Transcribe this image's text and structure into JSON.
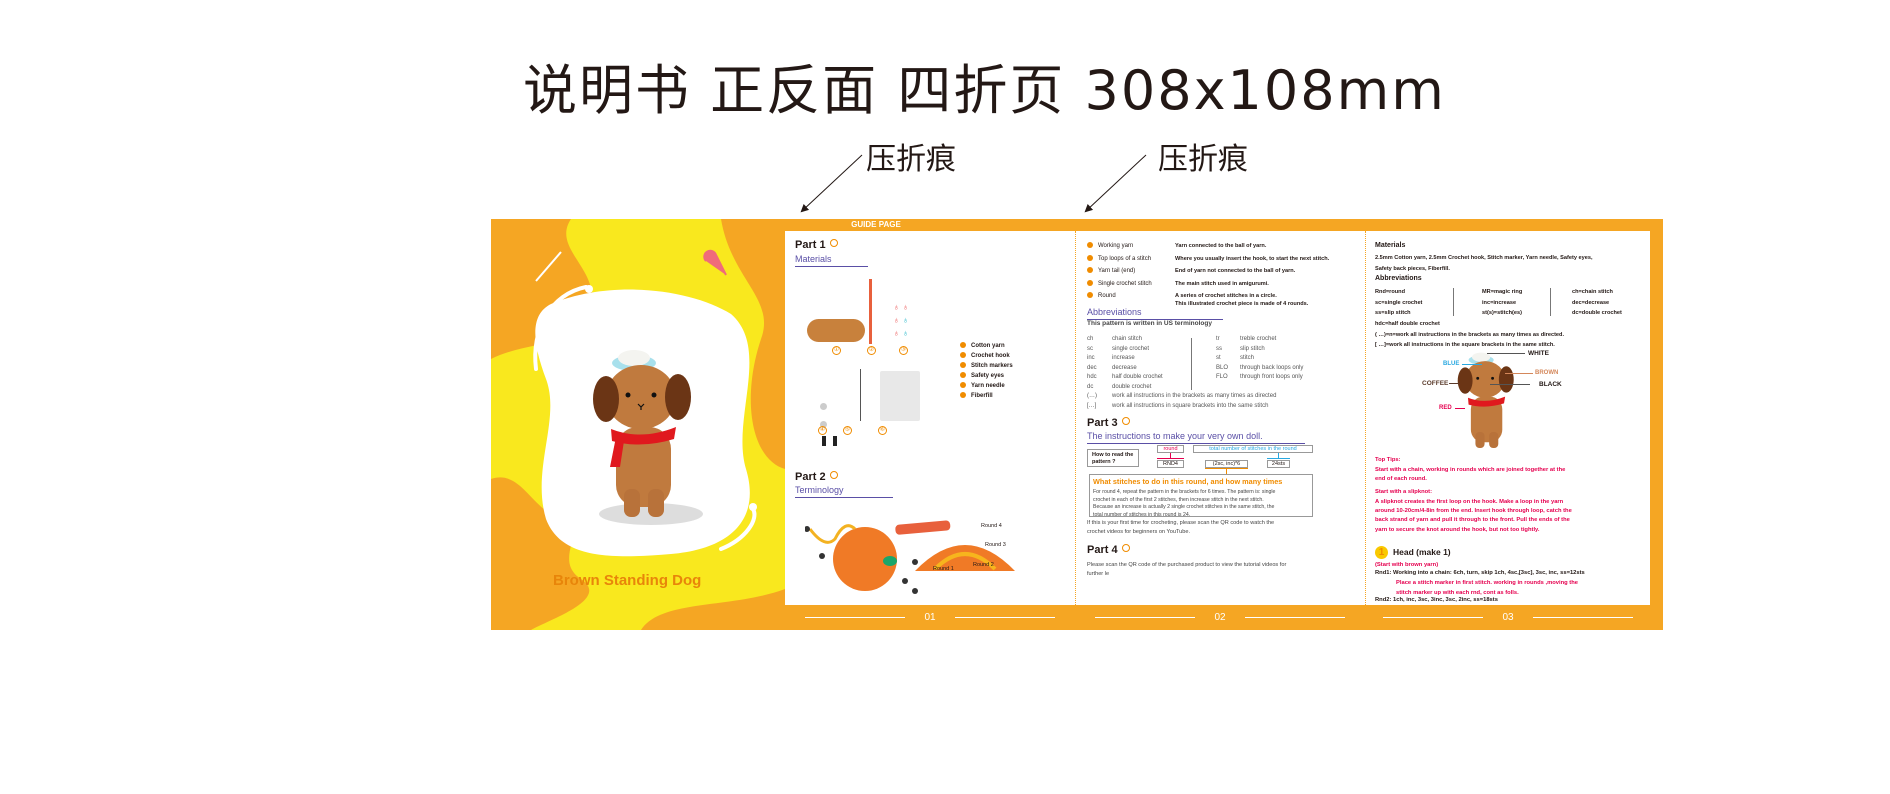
{
  "header": {
    "title": "说明书  正反面  四折页  308x108mm",
    "fold_labels": [
      "压折痕",
      "压折痕"
    ]
  },
  "colors": {
    "orange": "#f5a623",
    "yellow": "#f9e81e",
    "purple": "#5a4fa6",
    "red": "#e5004f",
    "blue": "#29a8e0"
  },
  "cover": {
    "title": "Brown Standing Dog"
  },
  "guide_tab": "GUIDE PAGE",
  "page_numbers": [
    "01",
    "02",
    "03"
  ],
  "page1": {
    "part1": "Part 1",
    "materials": "Materials",
    "item_numbers": [
      "①",
      "②",
      "③",
      "④",
      "⑤",
      "⑥"
    ],
    "materials_list": [
      "Cotton yarn",
      "Crochet hook",
      "Stitch markers",
      "Safety eyes",
      "Yarn needle",
      "Fiberfill"
    ],
    "part2": "Part 2",
    "terminology": "Terminology",
    "diagram_labels": [
      "Round 4",
      "Round 3",
      "Round 2",
      "Round 1"
    ],
    "diagram_markers": [
      "A",
      "B",
      "C",
      "D",
      "E"
    ]
  },
  "page2": {
    "terms": [
      {
        "term": "Working yarn",
        "desc": "Yarn connected to the ball of yarn."
      },
      {
        "term": "Top loops of a stitch",
        "desc": "Where you usually insert the hook,  to start the next stitch."
      },
      {
        "term": "Yarn tail (end)",
        "desc": "End of yarn not connected to the ball of yarn."
      },
      {
        "term": "Single crochet stitch",
        "desc": "The main stitch used in amigurumi."
      },
      {
        "term": "Round",
        "desc": "A series of crochet stitches in a circle."
      }
    ],
    "round_note": "This illustrated crochet piece is made of 4 rounds.",
    "abbrev_title": "Abbreviations",
    "abbrev_sub": "This pattern is written in US terminology",
    "abbrev_left": [
      [
        "ch",
        "chain stitch"
      ],
      [
        "sc",
        "single crochet"
      ],
      [
        "inc",
        "increase"
      ],
      [
        "dec",
        "decrease"
      ],
      [
        "hdc",
        "half double crochet"
      ],
      [
        "dc",
        "double crochet"
      ]
    ],
    "abbrev_right": [
      [
        "tr",
        "treble crochet"
      ],
      [
        "ss",
        "slip stitch"
      ],
      [
        "st",
        "stitch"
      ],
      [
        "BLO",
        "through back loops only"
      ],
      [
        "FLO",
        "through front loops only"
      ]
    ],
    "bracket_notes": [
      [
        "(…)",
        "work all instructions in the brackets as many times as directed"
      ],
      [
        "[…]",
        "work all instructions in square brackets into the same stitch"
      ]
    ],
    "part3": "Part 3",
    "instructions_title": "The instructions to make your very own doll.",
    "how_to_read": "How to read the pattern ?",
    "round_label": "round",
    "total_label": "total number of stitches in the round",
    "rnd": "RND4",
    "pattern": "(2sc, inc)*6",
    "sts": "24sts",
    "what_title": "What stitches to do in this round, and how many times",
    "what_body": [
      "For round 4, repeat the pattern in the brackets for 6 times. The pattern is: single",
      "crochet in each of the first 2 stitches, then increase stitch in the next stitch.",
      "Because an increase is actually 2 single crochet stitches in the same stitch, the",
      "total number of stitches in this round is 24."
    ],
    "qr_note": [
      "If this is your first time for crocheting, please scan the QR code to watch the",
      "crochet videos for beginners on YouTube."
    ],
    "part4": "Part 4",
    "part4_text": [
      "Please scan the QR code of the purchased product to view the tutorial videos for",
      "further le"
    ]
  },
  "page3": {
    "materials_title": "Materials",
    "materials_text": [
      "2.5mm Cotton yarn, 2.5mm Crochet hook, Stitch marker, Yarn needle, Safety eyes,",
      "Safety back pieces, Fiberfill."
    ],
    "abbrev_title": "Abbreviations",
    "abbrev_cols": [
      [
        "Rnd=round",
        "sc=single crochet",
        "ss=slip stitch"
      ],
      [
        "MR=magic ring",
        "inc=increase",
        "st(s)=stitch(es)"
      ],
      [
        "ch=chain stitch",
        "dec=decrease",
        "dc=double crochet"
      ]
    ],
    "abbrev_extra": [
      "hdc=half double crochet",
      "( …)=n=work all instructions in the brackets as many times as directed.",
      "[ …]=work all instructions in the square brackets in the same stitch."
    ],
    "color_labels": {
      "white": "WHITE",
      "blue": "BLUE",
      "brown": "BROWN",
      "coffee": "COFFEE",
      "black": "BLACK",
      "red": "RED"
    },
    "tips_title": "Top Tips:",
    "tips_text": [
      "Start with a chain, working in rounds which are joined together at the",
      "end of each round."
    ],
    "slipknot_title": "Start with a slipknot:",
    "slipknot_text": [
      "A slipknot creates the first loop on the hook. Make a loop in the yarn",
      "around 10-20cm/4-8in from the end. Insert hook through loop, catch the",
      "back strand of yarn and pull it through to the front. Pull the ends of the",
      "yarn to secure the knot around the hook, but not too tightly."
    ],
    "step_number": "1",
    "head_title": "Head (make 1)",
    "head_sub": "(Start with brown yarn)",
    "rnd1": "Rnd1: Working into a chain: 6ch, turn, skip 1ch, 4sc,[3sc], 3sc, inc, ss=12sts",
    "rnd1_note": [
      "Place a stitch marker in first stitch. working in rounds ,moving the",
      "stitch marker up with each rnd, cont as folls."
    ],
    "rnd2": "Rnd2: 1ch, inc, 3sc, 3inc, 3sc, 2inc, ss=18sts"
  }
}
